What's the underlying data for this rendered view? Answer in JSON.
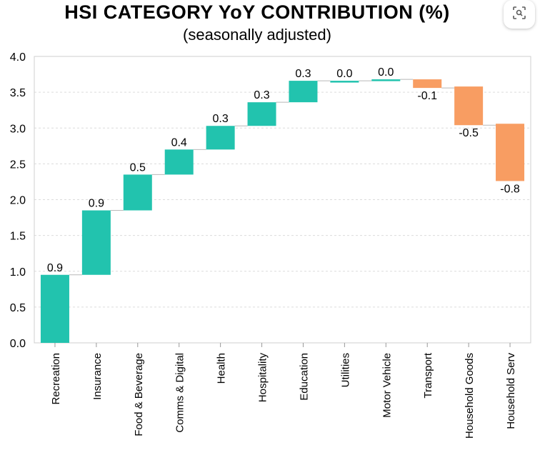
{
  "chart_data": {
    "type": "waterfall",
    "title": "HSI CATEGORY YoY CONTRIBUTION (%)",
    "subtitle": "(seasonally adjusted)",
    "categories": [
      "Recreation",
      "Insurance",
      "Food & Beverage",
      "Comms & Digital",
      "Health",
      "Hospitality",
      "Education",
      "Utilities",
      "Motor Vehicle",
      "Transport",
      "Household Goods",
      "Household Serv"
    ],
    "values": [
      0.9,
      0.9,
      0.5,
      0.4,
      0.3,
      0.3,
      0.3,
      0.0,
      0.0,
      -0.1,
      -0.5,
      -0.8
    ],
    "value_labels": [
      "0.9",
      "0.9",
      "0.5",
      "0.4",
      "0.3",
      "0.3",
      "0.3",
      "0.0",
      "0.0",
      "-0.1",
      "-0.5",
      "-0.8"
    ],
    "bars": [
      {
        "start": 0.0,
        "end": 0.95
      },
      {
        "start": 0.95,
        "end": 1.85
      },
      {
        "start": 1.85,
        "end": 2.35
      },
      {
        "start": 2.35,
        "end": 2.7
      },
      {
        "start": 2.7,
        "end": 3.03
      },
      {
        "start": 3.03,
        "end": 3.36
      },
      {
        "start": 3.36,
        "end": 3.66
      },
      {
        "start": 3.64,
        "end": 3.66
      },
      {
        "start": 3.66,
        "end": 3.68
      },
      {
        "start": 3.68,
        "end": 3.56
      },
      {
        "start": 3.58,
        "end": 3.04
      },
      {
        "start": 3.06,
        "end": 2.26
      }
    ],
    "ylim": [
      0,
      4.0
    ],
    "yticks": [
      "0.0",
      "0.5",
      "1.0",
      "1.5",
      "2.0",
      "2.5",
      "3.0",
      "3.5",
      "4.0"
    ],
    "grid": true,
    "colors": {
      "positive": "#22c3ae",
      "negative": "#f89d62",
      "connector": "#b8b8b8",
      "grid": "#dcdcdc"
    }
  },
  "toolbar": {
    "lens_icon": "lens-icon"
  }
}
